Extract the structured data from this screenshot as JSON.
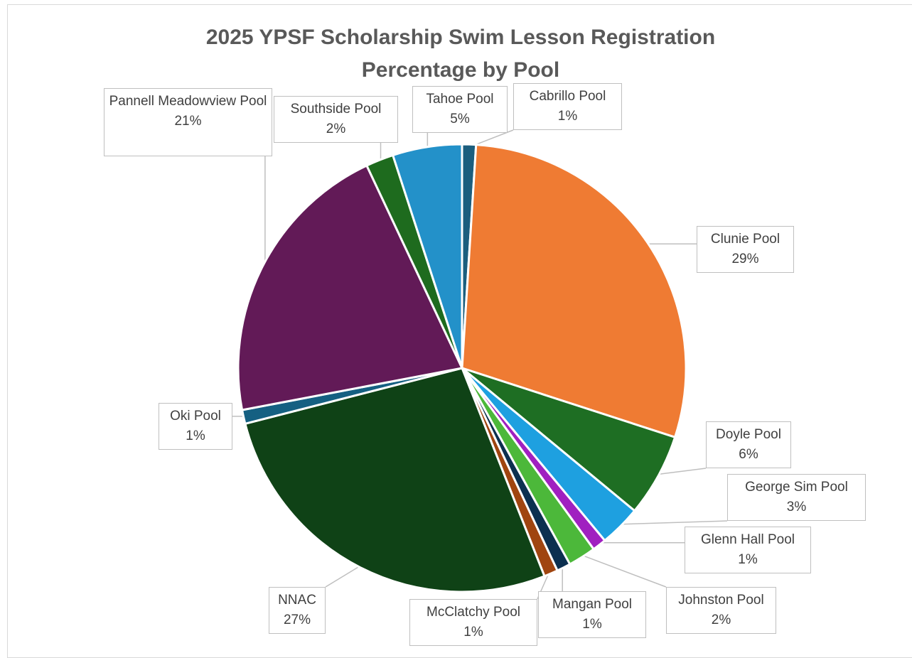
{
  "chart_data": {
    "type": "pie",
    "title": "2025 YPSF Scholarship Swim Lesson Registration Percentage by Pool",
    "categories": [
      "Cabrillo Pool",
      "Clunie Pool",
      "Doyle Pool",
      "George Sim Pool",
      "Glenn Hall Pool",
      "Johnston  Pool",
      "Mangan Pool",
      "McClatchy Pool",
      "NNAC",
      "Oki Pool",
      "Pannell Meadowview Pool",
      "Southside Pool",
      "Tahoe Pool"
    ],
    "values": [
      1,
      29,
      6,
      3,
      1,
      2,
      1,
      1,
      27,
      1,
      21,
      2,
      5
    ],
    "value_labels": [
      "1%",
      "29%",
      "6%",
      "3%",
      "1%",
      "2%",
      "1%",
      "1%",
      "27%",
      "1%",
      "21%",
      "2%",
      "5%"
    ],
    "colors": [
      "#1b5e7e",
      "#ef7b33",
      "#1e6e23",
      "#1ea0e0",
      "#a020c0",
      "#4cb83a",
      "#0c3050",
      "#a04510",
      "#0f4216",
      "#156082",
      "#621a57",
      "#1e6b1e",
      "#2391c9"
    ]
  }
}
